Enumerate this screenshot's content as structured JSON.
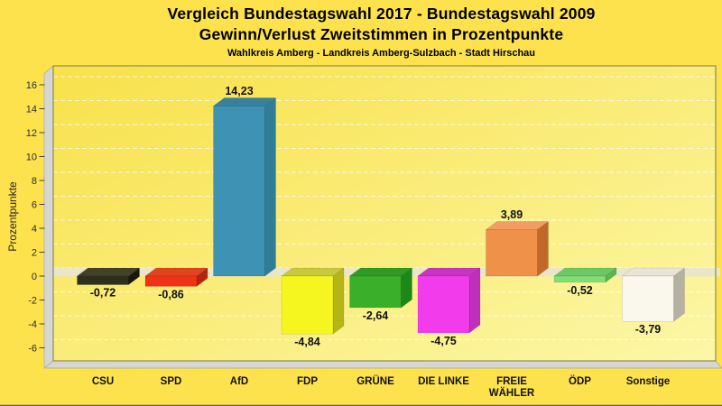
{
  "chart_data": {
    "type": "bar",
    "style_3d": true,
    "title_line1": "Vergleich Bundestagswahl 2017 - Bundestagswahl 2009",
    "title_line2": "Gewinn/Verlust Zweitstimmen in Prozentpunkte",
    "subtitle": "Wahlkreis Amberg - Landkreis Amberg-Sulzbach - Stadt Hirschau",
    "xlabel": "",
    "ylabel": "Prozentpunkte",
    "ylim": [
      -7,
      17.6
    ],
    "yticks": [
      16,
      14,
      12,
      10,
      8,
      6,
      4,
      2,
      0,
      -2,
      -4,
      -6
    ],
    "grid": "horizontal-dashed",
    "legend": "none",
    "categories": [
      "CSU",
      "SPD",
      "AfD",
      "FDP",
      "GRÜNE",
      "DIE LINKE",
      "FREIE WÄHLER",
      "ÖDP",
      "Sonstige"
    ],
    "values": [
      -0.72,
      -0.86,
      14.23,
      -4.84,
      -2.64,
      -4.75,
      3.89,
      -0.52,
      -3.79
    ],
    "value_labels": [
      "-0,72",
      "-0,86",
      "14,23",
      "-4,84",
      "-2,64",
      "-4,75",
      "3,89",
      "-0,52",
      "-3,79"
    ],
    "bars": [
      {
        "label_lines": [
          "CSU"
        ],
        "value": -0.72,
        "value_label": "-0,72",
        "front": "#2E2E1C",
        "top": "#42422A",
        "side": "#17170C"
      },
      {
        "label_lines": [
          "SPD"
        ],
        "value": -0.86,
        "value_label": "-0,86",
        "front": "#EF3316",
        "top": "#E1441F",
        "side": "#B3260D"
      },
      {
        "label_lines": [
          "AfD"
        ],
        "value": 14.23,
        "value_label": "14,23",
        "front": "#3E93B4",
        "top": "#37819E",
        "side": "#2F7D99"
      },
      {
        "label_lines": [
          "FDP"
        ],
        "value": -4.84,
        "value_label": "-4,84",
        "front": "#F5F520",
        "top": "#C8C83E",
        "side": "#B5B516"
      },
      {
        "label_lines": [
          "GRÜNE"
        ],
        "value": -2.64,
        "value_label": "-2,64",
        "front": "#3AAF29",
        "top": "#2F9B23",
        "side": "#1C8817"
      },
      {
        "label_lines": [
          "DIE LINKE"
        ],
        "value": -4.75,
        "value_label": "-4,75",
        "front": "#F23CEC",
        "top": "#C733C3",
        "side": "#C02FBE"
      },
      {
        "label_lines": [
          "FREIE",
          "WÄHLER"
        ],
        "value": 3.89,
        "value_label": "3,89",
        "front": "#F0914A",
        "top": "#F29E60",
        "side": "#C06828"
      },
      {
        "label_lines": [
          "ÖDP"
        ],
        "value": -0.52,
        "value_label": "-0,52",
        "front": "#82DC78",
        "top": "#6CC862",
        "side": "#5CB452"
      },
      {
        "label_lines": [
          "Sonstige"
        ],
        "value": -3.79,
        "value_label": "-3,79",
        "front": "#FAF8ED",
        "top": "#E8E5D6",
        "side": "#B5B2A3"
      }
    ],
    "colors": {
      "page_background": "#FDE24E",
      "plot_gradient_start": "#F8E14A",
      "plot_gradient_end": "#FCF7A8",
      "wall": "#D6D6D2",
      "wall_edge": "#A8A89C",
      "zero_plane": "#EAE6C9",
      "gridline": "#FFFFFF",
      "plot_border": "#8C8C54",
      "tick_text": "#2A2A3A",
      "text": "#111111",
      "bottom_edge": "#62624C"
    }
  }
}
